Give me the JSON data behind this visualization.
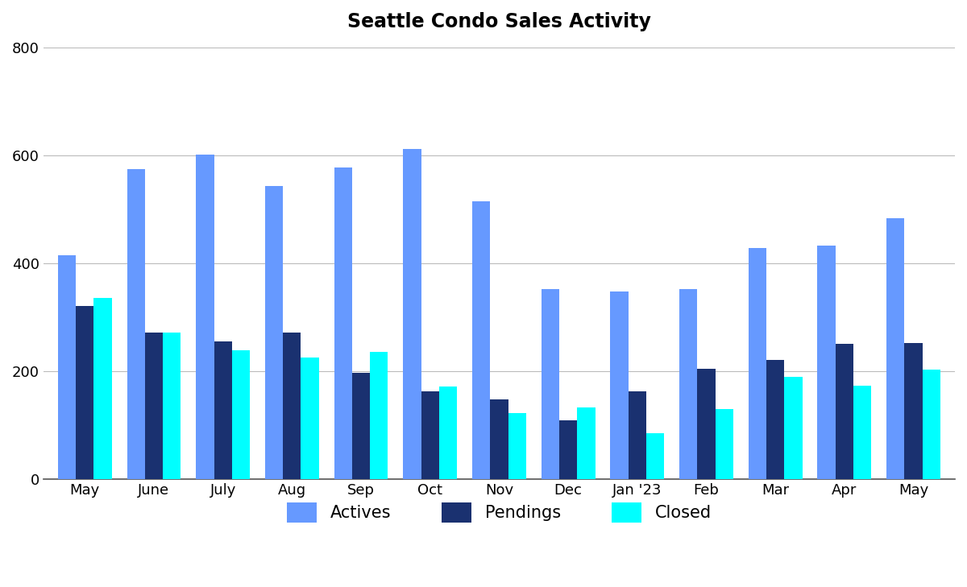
{
  "title": "Seattle Condo Sales Activity",
  "categories": [
    "May",
    "June",
    "July",
    "Aug",
    "Sep",
    "Oct",
    "Nov",
    "Dec",
    "Jan '23",
    "Feb",
    "Mar",
    "Apr",
    "May"
  ],
  "actives": [
    415,
    575,
    602,
    543,
    578,
    612,
    515,
    352,
    348,
    352,
    428,
    432,
    483
  ],
  "pendings": [
    320,
    272,
    255,
    272,
    197,
    162,
    148,
    108,
    163,
    205,
    220,
    250,
    252
  ],
  "closed": [
    335,
    272,
    238,
    225,
    235,
    172,
    122,
    132,
    85,
    130,
    190,
    173,
    203
  ],
  "actives_color": "#6699FF",
  "pendings_color": "#1A3170",
  "closed_color": "#00FFFF",
  "background_color": "#FFFFFF",
  "grid_color": "#BBBBBB",
  "ylim": [
    0,
    800
  ],
  "yticks": [
    0,
    200,
    400,
    600,
    800
  ],
  "title_fontsize": 17,
  "legend_labels": [
    "Actives",
    "Pendings",
    "Closed"
  ],
  "bar_width": 0.26
}
